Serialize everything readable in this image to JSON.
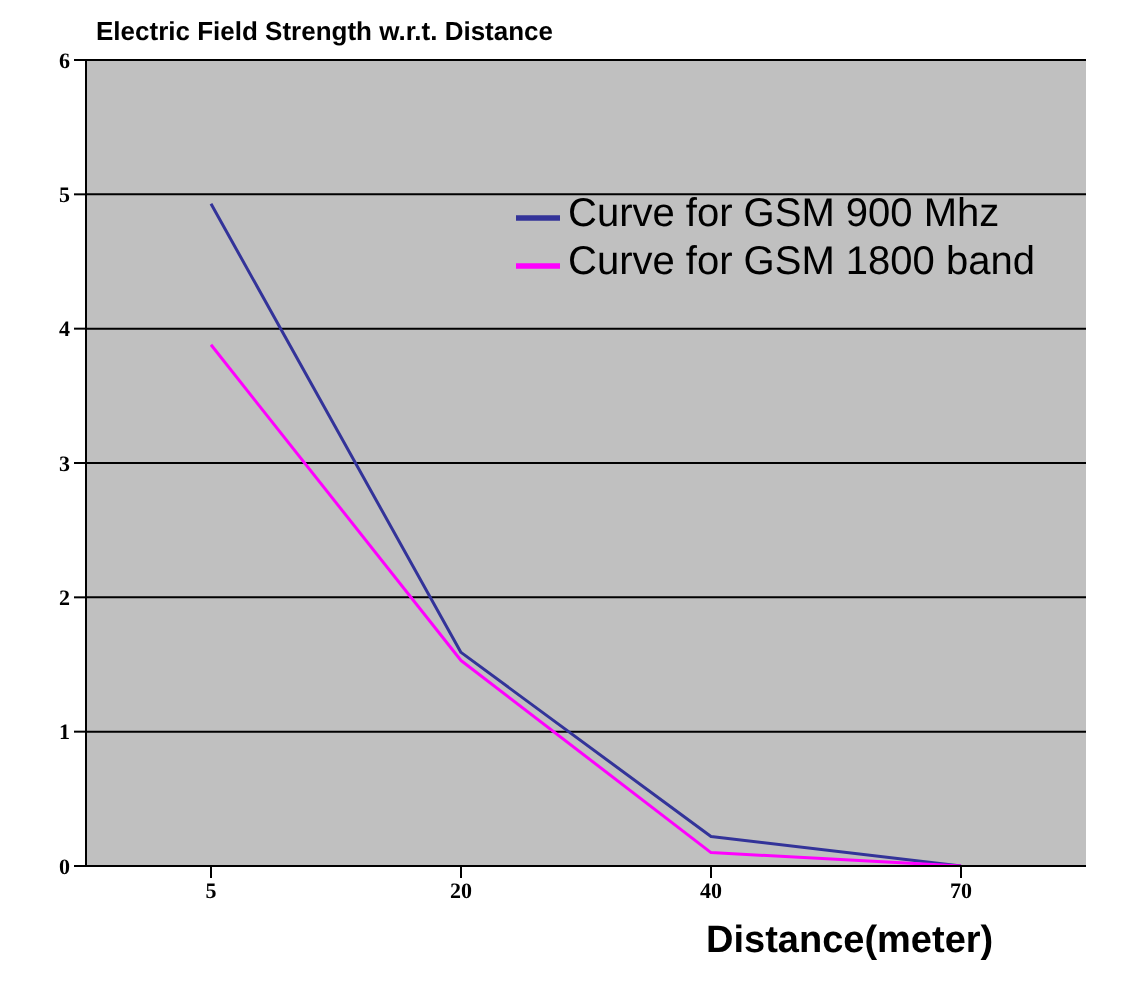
{
  "chart_data": {
    "type": "line",
    "title": "Electric Field Strength w.r.t. Distance",
    "xlabel": "Distance(meter)",
    "categories": [
      "5",
      "20",
      "40",
      "70"
    ],
    "series": [
      {
        "name": "Curve for GSM 900 Mhz",
        "color": "#333399",
        "values": [
          4.93,
          1.59,
          0.22,
          0
        ]
      },
      {
        "name": "Curve for GSM 1800 band",
        "color": "#ff00ff",
        "values": [
          3.88,
          1.53,
          0.1,
          0
        ]
      }
    ],
    "ylim": [
      0,
      6
    ],
    "yticks": [
      0,
      1,
      2,
      3,
      4,
      5,
      6
    ],
    "grid": "y",
    "legend": "top right",
    "marker": "none",
    "line_style": "solid"
  }
}
